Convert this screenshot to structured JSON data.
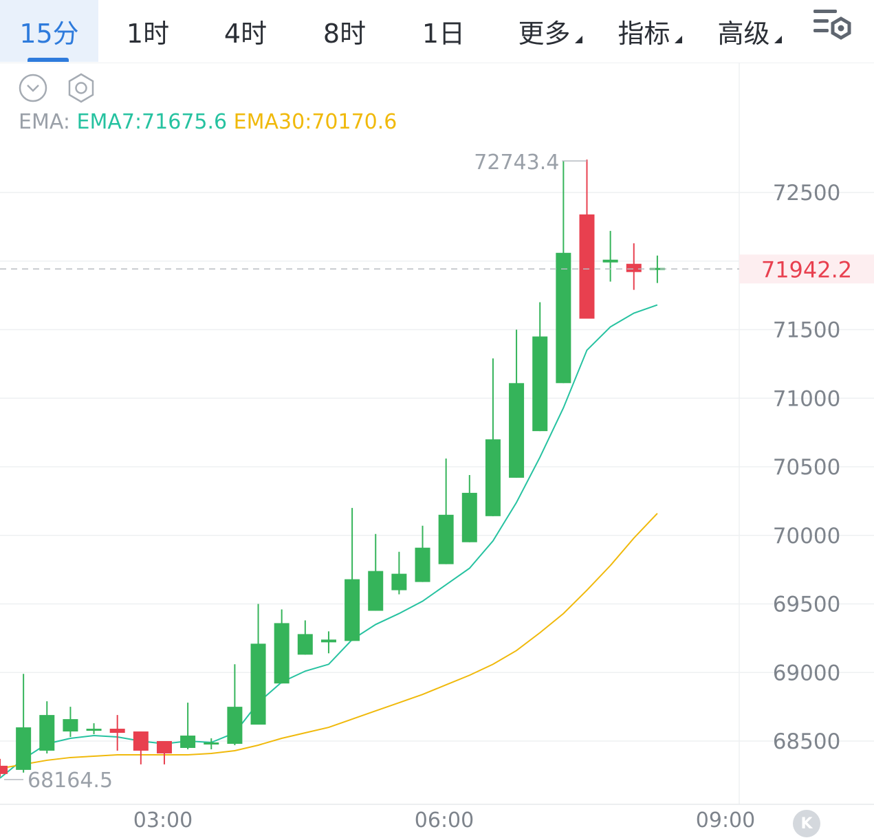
{
  "tabs": [
    {
      "label": "15分",
      "active": true
    },
    {
      "label": "1时",
      "active": false
    },
    {
      "label": "4时",
      "active": false
    },
    {
      "label": "8时",
      "active": false
    },
    {
      "label": "1日",
      "active": false
    },
    {
      "label": "更多",
      "dropdown": true
    },
    {
      "label": "指标",
      "dropdown": true
    },
    {
      "label": "高级",
      "dropdown": true
    }
  ],
  "toolbar": {
    "collapse_icon": "chevron-down-circle-icon",
    "hex_icon": "hexagon-settings-icon",
    "settings_icon": "chart-settings-icon"
  },
  "ema": {
    "label": "EMA:",
    "ema7_text": "EMA7:71675.6",
    "ema30_text": "EMA30:70170.6"
  },
  "colors": {
    "up": "#35b45a",
    "down": "#e8404f",
    "ema7": "#26c2a0",
    "ema30": "#f0b90b",
    "accent": "#2e7bdc"
  },
  "last_price_label": "71942.2",
  "kline_button_label": "K",
  "chart_data": {
    "type": "candlestick",
    "interval": "15分",
    "ylim": [
      68000,
      73000
    ],
    "yticks": [
      68500,
      69000,
      69500,
      70000,
      70500,
      71000,
      71500,
      72500
    ],
    "ytick_labels": [
      "68500",
      "69000",
      "69500",
      "70000",
      "70500",
      "71000",
      "71500",
      "72500"
    ],
    "xticks": [
      "03:00",
      "06:00",
      "09:00"
    ],
    "high_label": "72743.4",
    "low_label": "68164.5",
    "last_price": 71942.2,
    "grid": true,
    "candles": [
      {
        "o": 68320,
        "h": 68370,
        "c": 68260,
        "l": 68240
      },
      {
        "o": 68290,
        "h": 68990,
        "c": 68600,
        "l": 68270
      },
      {
        "o": 68430,
        "h": 68790,
        "c": 68690,
        "l": 68410
      },
      {
        "o": 68570,
        "h": 68750,
        "c": 68660,
        "l": 68530
      },
      {
        "o": 68590,
        "h": 68630,
        "c": 68590,
        "l": 68550
      },
      {
        "o": 68590,
        "h": 68690,
        "c": 68560,
        "l": 68430
      },
      {
        "o": 68570,
        "h": 68570,
        "c": 68430,
        "l": 68330
      },
      {
        "o": 68500,
        "h": 68500,
        "c": 68410,
        "l": 68330
      },
      {
        "o": 68450,
        "h": 68780,
        "c": 68540,
        "l": 68440
      },
      {
        "o": 68490,
        "h": 68520,
        "c": 68490,
        "l": 68440
      },
      {
        "o": 68480,
        "h": 69060,
        "c": 68750,
        "l": 68470
      },
      {
        "o": 68620,
        "h": 69500,
        "c": 69210,
        "l": 68620
      },
      {
        "o": 68920,
        "h": 69460,
        "c": 69360,
        "l": 68920
      },
      {
        "o": 69130,
        "h": 69380,
        "c": 69280,
        "l": 69130
      },
      {
        "o": 69220,
        "h": 69300,
        "c": 69240,
        "l": 69140
      },
      {
        "o": 69230,
        "h": 70200,
        "c": 69680,
        "l": 69230
      },
      {
        "o": 69450,
        "h": 70010,
        "c": 69740,
        "l": 69450
      },
      {
        "o": 69600,
        "h": 69880,
        "c": 69720,
        "l": 69570
      },
      {
        "o": 69660,
        "h": 70070,
        "c": 69910,
        "l": 69660
      },
      {
        "o": 69790,
        "h": 70560,
        "c": 70150,
        "l": 69790
      },
      {
        "o": 69950,
        "h": 70440,
        "c": 70310,
        "l": 69950
      },
      {
        "o": 70140,
        "h": 71290,
        "c": 70700,
        "l": 70140
      },
      {
        "o": 70420,
        "h": 71500,
        "c": 71110,
        "l": 70420
      },
      {
        "o": 70760,
        "h": 71700,
        "c": 71450,
        "l": 70760
      },
      {
        "o": 71110,
        "h": 72730,
        "c": 72060,
        "l": 71110
      },
      {
        "o": 72340,
        "h": 72740,
        "c": 71580,
        "l": 71580
      },
      {
        "o": 71990,
        "h": 72220,
        "c": 72010,
        "l": 71850
      },
      {
        "o": 71980,
        "h": 72130,
        "c": 71920,
        "l": 71790
      },
      {
        "o": 71950,
        "h": 72040,
        "c": 71950,
        "l": 71840
      }
    ],
    "series": [
      {
        "name": "EMA7",
        "values": [
          68230,
          68370,
          68480,
          68520,
          68540,
          68530,
          68500,
          68480,
          68500,
          68490,
          68560,
          68780,
          68930,
          69010,
          69060,
          69240,
          69350,
          69430,
          69520,
          69640,
          69760,
          69960,
          70240,
          70570,
          70930,
          71350,
          71520,
          71620,
          71680
        ]
      },
      {
        "name": "EMA30",
        "values": [
          68300,
          68330,
          68360,
          68380,
          68390,
          68400,
          68400,
          68400,
          68400,
          68410,
          68430,
          68470,
          68520,
          68560,
          68600,
          68660,
          68720,
          68780,
          68840,
          68910,
          68980,
          69060,
          69160,
          69290,
          69430,
          69600,
          69780,
          69980,
          70160
        ]
      }
    ]
  }
}
